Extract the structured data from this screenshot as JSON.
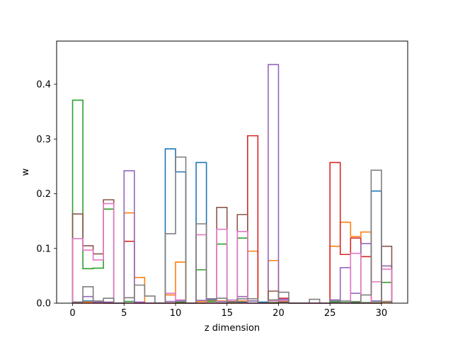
{
  "chart_data": {
    "type": "histogram-step",
    "title": "",
    "xlabel": "z dimension",
    "ylabel": "w",
    "xlim": [
      -1.55,
      32.55
    ],
    "ylim": [
      0,
      0.479
    ],
    "xticks": [
      0,
      5,
      10,
      15,
      20,
      25,
      30
    ],
    "yticks": [
      0.0,
      0.1,
      0.2,
      0.3,
      0.4
    ],
    "bin_edges": [
      0,
      1,
      2,
      3,
      4,
      5,
      6,
      7,
      8,
      9,
      10,
      11,
      12,
      13,
      14,
      15,
      16,
      17,
      18,
      19,
      20,
      21,
      22,
      23,
      24,
      25,
      26,
      27,
      28,
      29,
      30,
      31
    ],
    "grid": false,
    "legend": "none",
    "series": [
      {
        "color": "#1f77b4",
        "values": [
          0.002,
          0.004,
          0.001,
          0,
          0,
          0.003,
          0,
          0,
          0,
          0.282,
          0.24,
          0,
          0.257,
          0.005,
          0,
          0.003,
          0.002,
          0,
          0.002,
          0,
          0.003,
          0,
          0,
          0,
          0,
          0.002,
          0.001,
          0,
          0,
          0.205,
          0.002
        ]
      },
      {
        "color": "#ff7f0e",
        "values": [
          0.002,
          0.002,
          0.002,
          0.002,
          0,
          0.165,
          0.047,
          0,
          0,
          0.015,
          0.075,
          0,
          0.003,
          0.004,
          0.004,
          0.003,
          0.004,
          0.095,
          0,
          0.078,
          0.004,
          0,
          0,
          0,
          0,
          0.104,
          0.148,
          0.122,
          0.13,
          0.003,
          0.002
        ]
      },
      {
        "color": "#2ca02c",
        "values": [
          0.371,
          0.063,
          0.064,
          0.172,
          0,
          0.003,
          0,
          0,
          0,
          0.003,
          0.002,
          0,
          0.061,
          0.003,
          0.108,
          0.002,
          0.119,
          0.004,
          0,
          0.001,
          0.001,
          0,
          0,
          0,
          0,
          0.002,
          0.001,
          0.001,
          0.001,
          0.003,
          0.038
        ]
      },
      {
        "color": "#d62728",
        "values": [
          0,
          0,
          0,
          0,
          0,
          0.113,
          0,
          0,
          0,
          0,
          0,
          0,
          0,
          0,
          0,
          0,
          0,
          0.306,
          0,
          0,
          0.009,
          0,
          0,
          0,
          0,
          0.257,
          0.089,
          0.119,
          0.085,
          0,
          0.003
        ]
      },
      {
        "color": "#9467bd",
        "values": [
          0.002,
          0.012,
          0.002,
          0.002,
          0,
          0.242,
          0.002,
          0,
          0,
          0.003,
          0.004,
          0,
          0.005,
          0.008,
          0.003,
          0.003,
          0.012,
          0.004,
          0,
          0.436,
          0.007,
          0,
          0,
          0,
          0,
          0.006,
          0.065,
          0.018,
          0.109,
          0.004,
          0.068
        ]
      },
      {
        "color": "#8c564b",
        "values": [
          0.163,
          0.105,
          0.09,
          0.189,
          0,
          0,
          0,
          0,
          0,
          0,
          0,
          0,
          0,
          0,
          0.175,
          0.003,
          0.162,
          0,
          0,
          0.022,
          0.001,
          0,
          0,
          0,
          0,
          0,
          0,
          0,
          0,
          0,
          0.104
        ]
      },
      {
        "color": "#e377c2",
        "values": [
          0.118,
          0.097,
          0.079,
          0.182,
          0,
          0,
          0,
          0,
          0,
          0.018,
          0.006,
          0,
          0.125,
          0,
          0.135,
          0.006,
          0.131,
          0,
          0,
          0.004,
          0.005,
          0,
          0,
          0,
          0,
          0,
          0,
          0.091,
          0,
          0.039,
          0.062
        ]
      },
      {
        "color": "#7f7f7f",
        "values": [
          0.002,
          0.03,
          0.004,
          0.009,
          0,
          0.01,
          0.033,
          0.013,
          0,
          0.127,
          0.267,
          0,
          0.145,
          0.007,
          0.009,
          0.002,
          0.008,
          0.008,
          0,
          0.006,
          0.02,
          0,
          0,
          0.007,
          0,
          0.004,
          0.004,
          0.003,
          0.015,
          0.243,
          0.003
        ]
      }
    ]
  }
}
